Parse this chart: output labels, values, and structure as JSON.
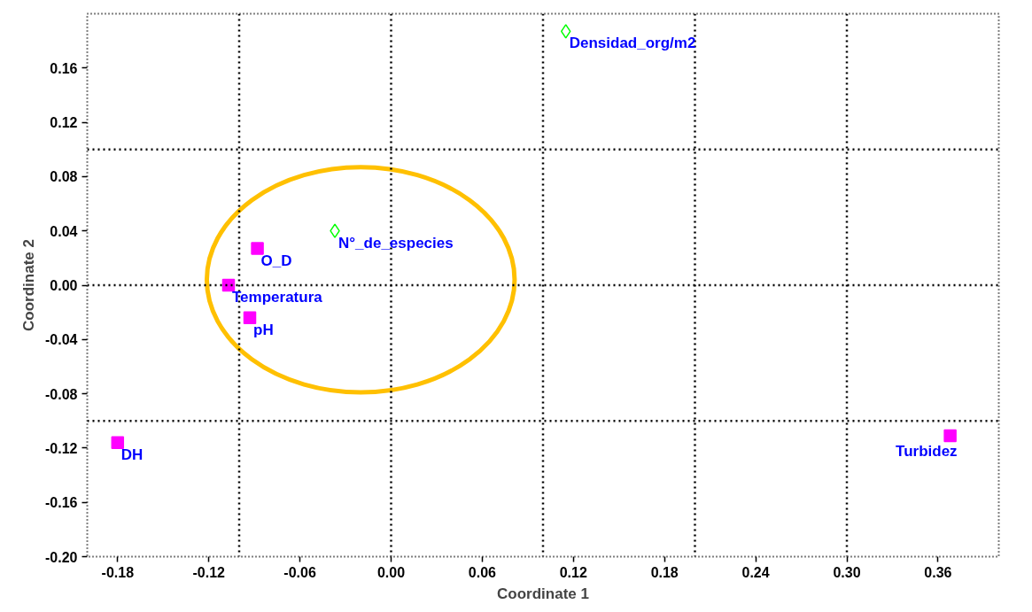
{
  "chart_data": {
    "type": "scatter",
    "xlabel": "Coordinate 1",
    "ylabel": "Coordinate 2",
    "series": [
      {
        "type": "scatter",
        "color": "#ff00ff",
        "marker": "square",
        "x": [
          -0.088,
          -0.107,
          -0.093,
          -0.18,
          0.368
        ],
        "values": [
          0.027,
          0.0,
          -0.024,
          -0.116,
          -0.111
        ]
      },
      {
        "type": "scatter",
        "color": "#00ff00",
        "marker": "diamond",
        "x": [
          0.115,
          -0.037
        ],
        "values": [
          0.187,
          0.04
        ]
      }
    ],
    "annotations": [
      {
        "text": "O_D",
        "x": -0.088,
        "y": 0.027
      },
      {
        "text": "Temperatura",
        "x": -0.107,
        "y": 0.0
      },
      {
        "text": "pH",
        "x": -0.093,
        "y": -0.024
      },
      {
        "text": "DH",
        "x": -0.18,
        "y": -0.116
      },
      {
        "text": "Turbidez",
        "x": 0.368,
        "y": -0.111
      },
      {
        "text": "Densidad_org/m2",
        "x": 0.115,
        "y": 0.187
      },
      {
        "text": "N°_de_especies",
        "x": -0.037,
        "y": 0.04
      }
    ],
    "xlim": [
      -0.2,
      0.4
    ],
    "ylim": [
      -0.2,
      0.2
    ],
    "xticks": [
      -0.18,
      -0.12,
      -0.06,
      {
        "value": 0,
        "label": "0.00"
      },
      0.06,
      0.12,
      0.18,
      0.24,
      {
        "value": 0.3,
        "label": "0.30"
      },
      0.36
    ],
    "yticks": [
      {
        "value": -0.2,
        "label": "-0.20"
      },
      -0.16,
      -0.12,
      -0.08,
      -0.04,
      {
        "value": 0,
        "label": "0.00"
      },
      0.04,
      0.08,
      0.12,
      0.16
    ],
    "ref_lines": [
      {
        "axis": "x",
        "value": -0.1,
        "color": "#000000",
        "line_style": "dotted"
      },
      {
        "axis": "x",
        "value": 0,
        "color": "#000000",
        "line_style": "dotted"
      },
      {
        "axis": "x",
        "value": 0.1,
        "color": "#000000",
        "line_style": "dotted"
      },
      {
        "axis": "x",
        "value": 0.2,
        "color": "#000000",
        "line_style": "dotted"
      },
      {
        "axis": "x",
        "value": 0.3,
        "color": "#000000",
        "line_style": "dotted"
      },
      {
        "axis": "y",
        "value": 0.1,
        "color": "#000000",
        "line_style": "dotted"
      },
      {
        "axis": "y",
        "value": 0,
        "color": "#000000",
        "line_style": "dotted"
      },
      {
        "axis": "y",
        "value": -0.1,
        "color": "#000000",
        "line_style": "dotted"
      }
    ]
  }
}
